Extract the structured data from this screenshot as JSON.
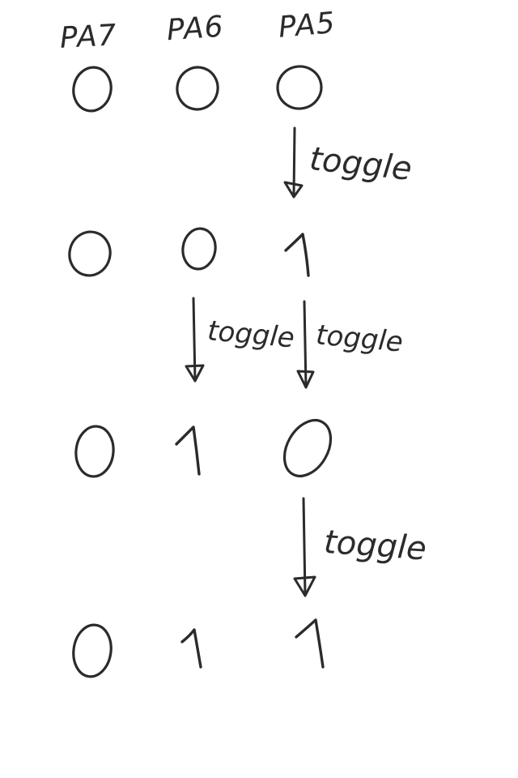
{
  "headers": [
    "PA7",
    "PA6",
    "PA5"
  ],
  "rows": [
    [
      "0",
      "0",
      "0"
    ],
    [
      "0",
      "0",
      "1"
    ],
    [
      "0",
      "1",
      "0"
    ],
    [
      "0",
      "1",
      "1"
    ]
  ],
  "toggle_label": "toggle",
  "colors": {
    "ink": "#2b2b2b",
    "background": "#ffffff"
  }
}
